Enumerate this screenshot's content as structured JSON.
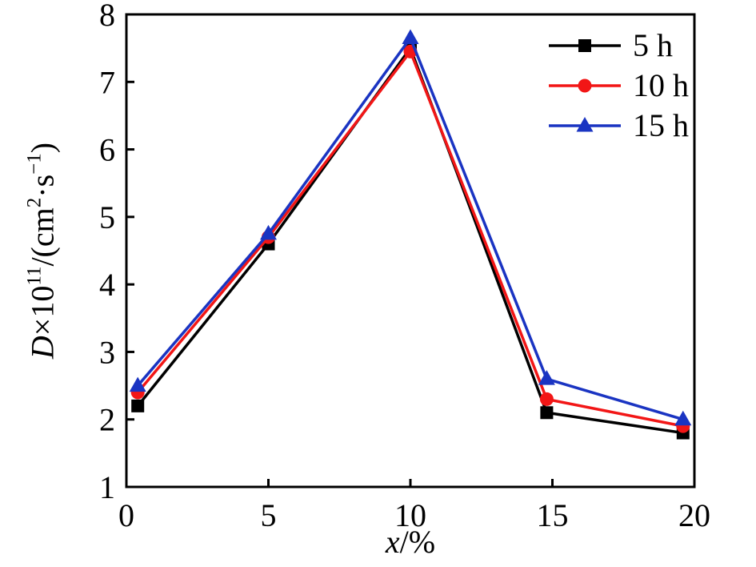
{
  "figure": {
    "background": "#ffffff",
    "axis_color": "#000000"
  },
  "chart_data": {
    "type": "line",
    "title": "",
    "x": [
      0.4,
      5.0,
      10.0,
      14.8,
      19.6
    ],
    "xlim": [
      0,
      20
    ],
    "ylim": [
      1,
      8
    ],
    "xticks": [
      0,
      5,
      10,
      15,
      20
    ],
    "yticks": [
      1,
      2,
      3,
      4,
      5,
      6,
      7,
      8
    ],
    "grid": false,
    "legend_position": "top-right",
    "xlabel": "x/%",
    "ylabel": "D×10¹¹/(cm²·s⁻¹)",
    "xlabel_parts": [
      {
        "text": "x",
        "italic": true
      },
      {
        "text": "/%"
      }
    ],
    "ylabel_parts": [
      {
        "text": "D",
        "italic": true
      },
      {
        "text": "×10"
      },
      {
        "text": "11",
        "sup": true
      },
      {
        "text": "/(cm"
      },
      {
        "text": "2",
        "sup": true
      },
      {
        "text": "·s"
      },
      {
        "text": "−1",
        "sup": true
      },
      {
        "text": ")"
      }
    ],
    "series": [
      {
        "name": "5 h",
        "color": "#000000",
        "marker": "square",
        "values": [
          2.2,
          4.6,
          7.5,
          2.1,
          1.8
        ]
      },
      {
        "name": "10 h",
        "color": "#f21616",
        "marker": "circle",
        "values": [
          2.4,
          4.7,
          7.45,
          2.3,
          1.9
        ]
      },
      {
        "name": "15 h",
        "color": "#1a34c2",
        "marker": "triangle",
        "values": [
          2.5,
          4.75,
          7.65,
          2.6,
          2.0
        ]
      }
    ]
  }
}
